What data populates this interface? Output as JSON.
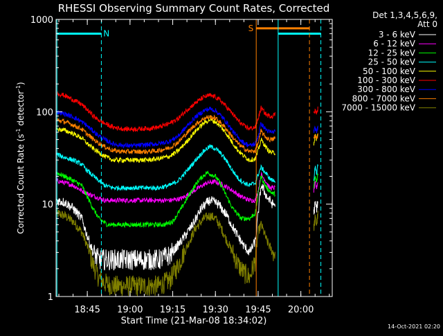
{
  "chart_data": {
    "type": "line",
    "title": "RHESSI Observing Summary Count Rates, Corrected",
    "xlabel": "Start Time (21-Mar-08 18:34:02)",
    "ylabel_main": "Corrected Count Rate (s",
    "ylabel_sup1": "-1",
    "ylabel_mid": " detector",
    "ylabel_sup2": "-1",
    "ylabel_end": ")",
    "x_unit": "minutes after 18:34:02",
    "xlim": [
      0,
      97
    ],
    "ylim": [
      1,
      1000
    ],
    "y_scale": "log",
    "x_ticks": [
      {
        "t": 10.97,
        "label": "18:45"
      },
      {
        "t": 25.97,
        "label": "19:00"
      },
      {
        "t": 40.97,
        "label": "19:15"
      },
      {
        "t": 55.97,
        "label": "19:30"
      },
      {
        "t": 70.97,
        "label": "19:45"
      },
      {
        "t": 85.97,
        "label": "20:00"
      }
    ],
    "y_ticks": [
      {
        "v": 1,
        "label": "1"
      },
      {
        "v": 10,
        "label": "10"
      },
      {
        "v": 100,
        "label": "100"
      },
      {
        "v": 1000,
        "label": "1000"
      }
    ],
    "legend_header": [
      "Det 1,3,4,5,6,9,",
      "Att 0"
    ],
    "series": [
      {
        "name": "3 - 6 keV",
        "color": "#ffffff",
        "x": [
          0,
          3,
          6,
          9,
          11,
          13,
          15,
          18,
          22,
          25,
          29,
          33,
          36,
          40,
          44,
          48,
          51,
          54,
          57,
          60,
          63,
          66,
          68,
          70,
          71,
          72,
          73,
          74,
          75,
          76,
          77
        ],
        "y": [
          11,
          10.5,
          9,
          7,
          4.5,
          3,
          2.5,
          2.5,
          2.5,
          2.5,
          2.5,
          2.5,
          2.5,
          2.8,
          4,
          6,
          9,
          11,
          10,
          7.5,
          5,
          3.5,
          3,
          4,
          8,
          16,
          14,
          12,
          11,
          10,
          10
        ],
        "x2": [
          90.5,
          91,
          91.5,
          92
        ],
        "y2": [
          8,
          10,
          9,
          11
        ]
      },
      {
        "name": "6 - 12 keV",
        "color": "#ff00ff",
        "x": [
          0,
          3,
          6,
          9,
          11,
          14,
          17,
          20,
          25,
          30,
          35,
          40,
          44,
          47,
          50,
          53,
          56,
          59,
          62,
          65,
          68,
          70,
          71,
          72,
          73,
          74,
          75,
          76,
          77
        ],
        "y": [
          18,
          17,
          16,
          14,
          13,
          12,
          11,
          11,
          11,
          11,
          11,
          11,
          11.5,
          13,
          15,
          17,
          17.5,
          16,
          14,
          12,
          11,
          11,
          14,
          21,
          19,
          17,
          15,
          15,
          15
        ],
        "x2": [
          90.5,
          91,
          91.5,
          92
        ],
        "y2": [
          14,
          17,
          15,
          18
        ]
      },
      {
        "name": "12 - 25 keV",
        "color": "#00ff00",
        "x": [
          0,
          3,
          6,
          9,
          11,
          13,
          15,
          18,
          22,
          26,
          30,
          34,
          38,
          41,
          44,
          47,
          50,
          53,
          56,
          58,
          60,
          62,
          65,
          68,
          70,
          71,
          72,
          73,
          74,
          75,
          76,
          77
        ],
        "y": [
          22,
          20,
          18,
          16,
          12,
          9,
          7,
          6,
          6,
          6,
          6,
          6,
          6,
          6.5,
          9,
          13,
          18,
          22,
          20,
          16,
          12,
          9,
          7,
          7,
          8,
          13,
          20,
          17,
          15,
          14,
          13,
          13
        ],
        "x2": [
          90.5,
          91,
          91.5,
          92
        ],
        "y2": [
          15,
          20,
          17,
          22
        ]
      },
      {
        "name": "25 - 50 keV",
        "color": "#00ffff",
        "x": [
          0,
          3,
          6,
          9,
          11,
          14,
          17,
          20,
          24,
          28,
          32,
          36,
          40,
          43,
          46,
          49,
          52,
          54,
          56,
          58,
          60,
          62,
          64,
          66,
          68,
          70,
          71,
          72,
          73,
          74,
          75,
          76,
          77
        ],
        "y": [
          35,
          32,
          30,
          27,
          23,
          19,
          16,
          15,
          15,
          15,
          15,
          15,
          16,
          18,
          23,
          30,
          38,
          42,
          40,
          35,
          29,
          23,
          19,
          17,
          16,
          17,
          21,
          25,
          23,
          21,
          19,
          18,
          18
        ],
        "x2": [
          90.5,
          91,
          91.5,
          92
        ],
        "y2": [
          18,
          25,
          21,
          28
        ]
      },
      {
        "name": "50 - 100 keV",
        "color": "#ffff00",
        "x": [
          0,
          3,
          6,
          9,
          11,
          14,
          17,
          20,
          24,
          28,
          32,
          36,
          40,
          43,
          46,
          49,
          52,
          54,
          56,
          58,
          60,
          62,
          64,
          66,
          68,
          70,
          71,
          72,
          73,
          74,
          75,
          76,
          77
        ],
        "y": [
          65,
          63,
          58,
          52,
          45,
          38,
          33,
          30,
          30,
          30,
          30,
          31,
          33,
          38,
          48,
          62,
          76,
          82,
          78,
          68,
          57,
          46,
          38,
          33,
          30,
          31,
          38,
          50,
          45,
          40,
          37,
          36,
          36
        ],
        "x2": [
          90.5,
          91,
          91.5,
          92
        ],
        "y2": [
          45,
          55,
          50,
          60
        ]
      },
      {
        "name": "100 - 300 keV",
        "color": "#ff0000",
        "x": [
          0,
          3,
          6,
          9,
          11,
          14,
          17,
          20,
          24,
          28,
          32,
          36,
          40,
          43,
          46,
          49,
          52,
          54,
          56,
          58,
          60,
          62,
          64,
          66,
          68,
          70,
          71,
          72,
          73,
          74,
          75,
          76,
          77
        ],
        "y": [
          160,
          150,
          135,
          120,
          105,
          85,
          75,
          68,
          65,
          65,
          66,
          68,
          75,
          85,
          105,
          125,
          145,
          150,
          145,
          130,
          112,
          95,
          80,
          70,
          66,
          68,
          85,
          110,
          100,
          92,
          90,
          90,
          95
        ],
        "x2": [
          90.5,
          91,
          91.5,
          92
        ],
        "y2": [
          100,
          105,
          95,
          110
        ]
      },
      {
        "name": "300 - 800 keV",
        "color": "#0000ff",
        "x": [
          0,
          3,
          6,
          9,
          11,
          14,
          17,
          20,
          24,
          28,
          32,
          36,
          40,
          43,
          46,
          49,
          52,
          54,
          56,
          58,
          60,
          62,
          64,
          66,
          68,
          70,
          71,
          72,
          73,
          74,
          75,
          76,
          77
        ],
        "y": [
          100,
          95,
          88,
          78,
          70,
          58,
          50,
          45,
          43,
          43,
          44,
          45,
          48,
          55,
          70,
          88,
          103,
          108,
          103,
          90,
          76,
          62,
          52,
          46,
          43,
          45,
          55,
          75,
          68,
          63,
          60,
          60,
          62
        ],
        "x2": [
          90.5,
          91,
          91.5,
          92
        ],
        "y2": [
          62,
          66,
          60,
          70
        ]
      },
      {
        "name": "800 - 7000 keV",
        "color": "#ff8000",
        "x": [
          0,
          3,
          6,
          9,
          11,
          14,
          17,
          20,
          24,
          28,
          32,
          36,
          40,
          43,
          46,
          49,
          52,
          54,
          56,
          58,
          60,
          62,
          64,
          66,
          68,
          70,
          71,
          72,
          73,
          74,
          75,
          76,
          77
        ],
        "y": [
          82,
          78,
          72,
          65,
          57,
          48,
          42,
          38,
          37,
          37,
          37,
          38,
          41,
          47,
          59,
          73,
          85,
          88,
          85,
          75,
          64,
          53,
          45,
          40,
          37,
          38,
          46,
          62,
          56,
          52,
          50,
          50,
          52
        ],
        "x2": [
          90.5,
          91,
          91.5,
          92
        ],
        "y2": [
          52,
          56,
          50,
          58
        ]
      },
      {
        "name": "7000 - 15000 keV",
        "color": "#808000",
        "x": [
          0,
          3,
          6,
          9,
          11,
          13,
          15,
          17,
          20,
          24,
          28,
          32,
          36,
          40,
          43,
          46,
          49,
          52,
          54,
          56,
          58,
          60,
          62,
          64,
          66,
          68,
          70,
          71,
          72,
          73,
          74,
          75,
          76,
          77
        ],
        "y": [
          8,
          7.5,
          6.5,
          5,
          3.5,
          2.2,
          1.6,
          1.4,
          1.3,
          1.3,
          1.3,
          1.3,
          1.3,
          1.5,
          2.2,
          3.5,
          5.5,
          7,
          7.5,
          7,
          5.5,
          4,
          3,
          2.2,
          1.8,
          1.6,
          2.5,
          5,
          6,
          5,
          4,
          3.5,
          3,
          3
        ],
        "x2": [
          90.5,
          91,
          91.5,
          92
        ],
        "y2": [
          5.5,
          7,
          6,
          8
        ]
      }
    ],
    "annotations": [
      {
        "type": "vline",
        "t": 0.3,
        "color": "#00ffff",
        "style": "solid"
      },
      {
        "type": "vline",
        "t": 15.9,
        "color": "#00ffff",
        "style": "dashed"
      },
      {
        "type": "hbar",
        "t0": 0.3,
        "t1": 15.9,
        "v": 700,
        "color": "#00ffff"
      },
      {
        "type": "label",
        "t": 16.6,
        "v": 700,
        "text": "N",
        "color": "#00ffff"
      },
      {
        "type": "vline",
        "t": 70.3,
        "color": "#ff8000",
        "style": "solid"
      },
      {
        "type": "hbar",
        "t0": 70.3,
        "t1": 89.0,
        "v": 800,
        "color": "#ff8000"
      },
      {
        "type": "label",
        "t": 67.5,
        "v": 800,
        "text": "S",
        "color": "#ff8000"
      },
      {
        "type": "vline",
        "t": 78.0,
        "color": "#00ffff",
        "style": "solid"
      },
      {
        "type": "hbar",
        "t0": 78.0,
        "t1": 93.0,
        "v": 700,
        "color": "#00ffff"
      },
      {
        "type": "vline",
        "t": 89.0,
        "color": "#ff8000",
        "style": "dashed"
      },
      {
        "type": "vline",
        "t": 93.0,
        "color": "#00ffff",
        "style": "dashed"
      }
    ],
    "grid": false,
    "legend_position": "right"
  },
  "footer": {
    "timestamp": "14-Oct-2021 02:20"
  }
}
